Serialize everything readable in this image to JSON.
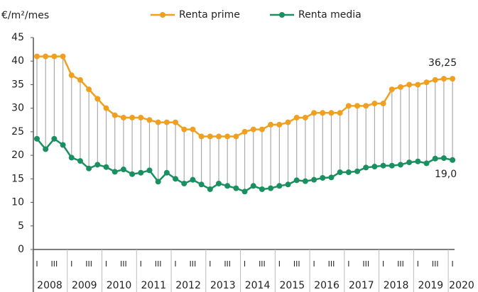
{
  "chart_data": {
    "type": "line",
    "y_axis_label": "€/m²/mes",
    "categories": [
      "I",
      null,
      "III",
      null,
      "I",
      null,
      "III",
      null,
      "I",
      null,
      "III",
      null,
      "I",
      null,
      "III",
      null,
      "I",
      null,
      "III",
      null,
      "I",
      null,
      "III",
      null,
      "I",
      null,
      "III",
      null,
      "I",
      null,
      "III",
      null,
      "I",
      null,
      "III",
      null,
      "I",
      null,
      "III",
      null,
      "I",
      null,
      "III",
      null,
      "I",
      null,
      "III",
      null,
      "I"
    ],
    "year_labels": [
      "2008",
      "2009",
      "2010",
      "2011",
      "2012",
      "2013",
      "2014",
      "2015",
      "2016",
      "2017",
      "2018",
      "2019",
      "2020"
    ],
    "series": [
      {
        "name": "Renta prime",
        "color": "#f0a020",
        "values": [
          41,
          41,
          41,
          41,
          37,
          36,
          34,
          32,
          30,
          28.5,
          28,
          28,
          28,
          27.5,
          27,
          27,
          27,
          25.5,
          25.5,
          24,
          24,
          24,
          24,
          24,
          25,
          25.5,
          25.5,
          26.5,
          26.5,
          27,
          28,
          28,
          29,
          29,
          29,
          29,
          30.5,
          30.5,
          30.5,
          31,
          31,
          34,
          34.5,
          35,
          35,
          35.5,
          36,
          36.25,
          36.25
        ],
        "value_labels": [
          null,
          null,
          null,
          null,
          null,
          null,
          null,
          null,
          null,
          null,
          null,
          null,
          null,
          null,
          null,
          null,
          null,
          null,
          null,
          null,
          null,
          null,
          null,
          null,
          null,
          null,
          null,
          null,
          null,
          null,
          null,
          null,
          null,
          null,
          null,
          null,
          null,
          null,
          null,
          null,
          null,
          null,
          null,
          null,
          null,
          null,
          null,
          null,
          "36,25"
        ]
      },
      {
        "name": "Renta media",
        "color": "#1a9060",
        "values": [
          23.5,
          21.3,
          23.5,
          22.2,
          19.5,
          18.8,
          17.2,
          18,
          17.5,
          16.5,
          17,
          16,
          16.3,
          16.8,
          14.4,
          16.3,
          15,
          14,
          14.8,
          13.8,
          12.8,
          14,
          13.5,
          13,
          12.3,
          13.5,
          12.8,
          13,
          13.5,
          13.8,
          14.7,
          14.5,
          14.8,
          15.2,
          15.3,
          16.4,
          16.4,
          16.6,
          17.4,
          17.6,
          17.8,
          17.8,
          18,
          18.5,
          18.7,
          18.3,
          19.3,
          19.4,
          19.0
        ],
        "value_labels": [
          null,
          null,
          null,
          null,
          null,
          null,
          null,
          null,
          null,
          null,
          null,
          null,
          null,
          null,
          null,
          null,
          null,
          null,
          null,
          null,
          null,
          null,
          null,
          null,
          null,
          null,
          null,
          null,
          null,
          null,
          null,
          null,
          null,
          null,
          null,
          null,
          null,
          null,
          null,
          null,
          null,
          null,
          null,
          null,
          null,
          null,
          null,
          null,
          "19,0"
        ]
      }
    ],
    "ylim": [
      0,
      45
    ],
    "yticks": [
      0,
      5,
      10,
      15,
      20,
      25,
      30,
      35,
      40,
      45
    ],
    "drop_lines": true,
    "legend": "top"
  }
}
